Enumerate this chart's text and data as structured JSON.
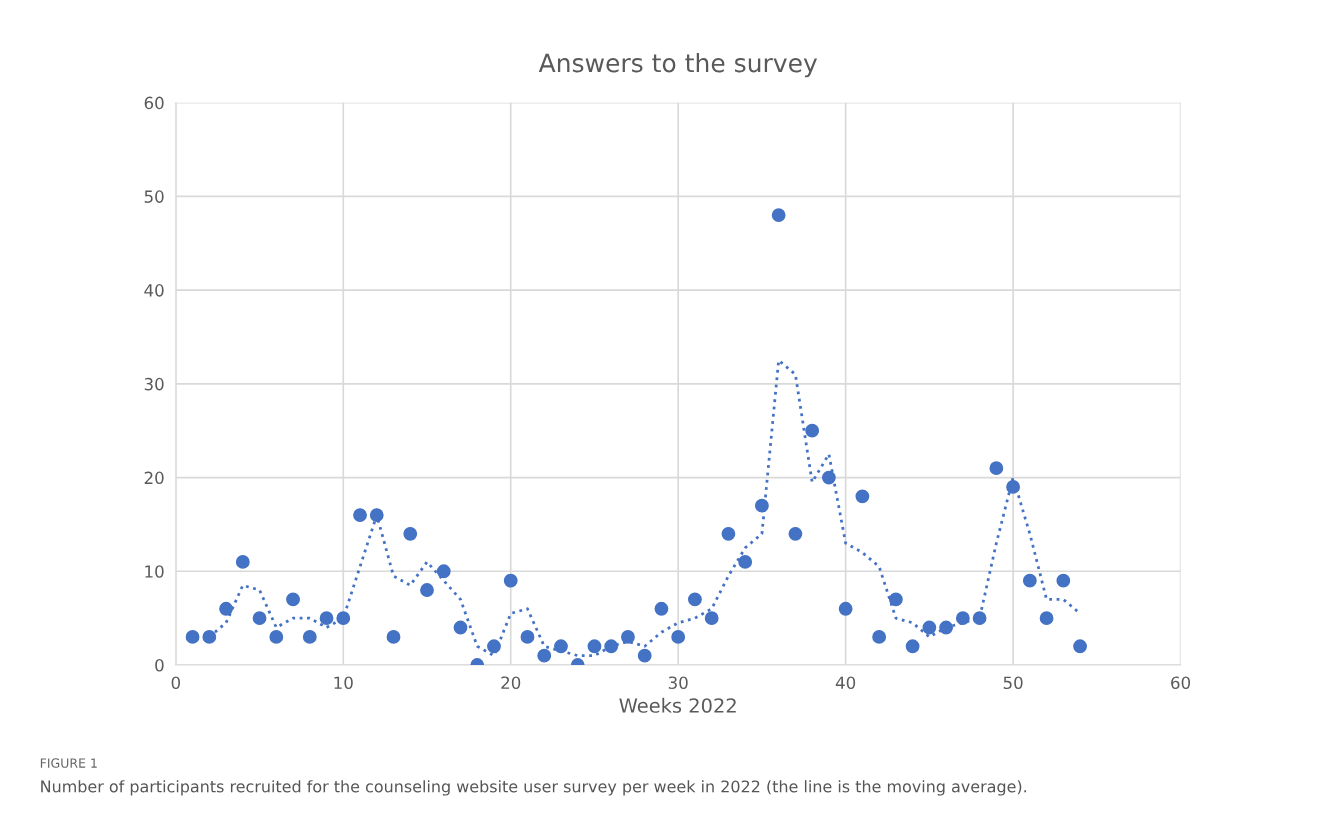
{
  "chart_data": {
    "type": "scatter",
    "title": "Answers to the survey",
    "xlabel": "Weeks 2022",
    "annotations": [
      "FIGURE 1",
      "Number of participants recruited for the counseling website user survey per week in 2022 (the line is the moving average)."
    ],
    "series": [
      {
        "color": "#4472c4",
        "marker": "circle",
        "x": [
          1,
          2,
          3,
          4,
          5,
          6,
          7,
          8,
          9,
          10,
          11,
          12,
          13,
          14,
          15,
          16,
          17,
          18,
          19,
          20,
          21,
          22,
          23,
          24,
          25,
          26,
          27,
          28,
          29,
          30,
          31,
          32,
          33,
          34,
          35,
          36,
          37,
          38,
          39,
          40,
          41,
          42,
          43,
          44,
          45,
          46,
          47,
          48,
          49,
          50,
          51,
          52,
          53,
          54
        ],
        "values": [
          3,
          3,
          6,
          11,
          5,
          3,
          7,
          3,
          5,
          5,
          16,
          16,
          3,
          14,
          8,
          10,
          4,
          0,
          2,
          9,
          3,
          1,
          2,
          0,
          2,
          2,
          3,
          1,
          6,
          3,
          7,
          5,
          14,
          11,
          17,
          48,
          14,
          25,
          20,
          6,
          18,
          3,
          7,
          2,
          4,
          4,
          5,
          5,
          21,
          19,
          9,
          5,
          9,
          2
        ]
      },
      {
        "type": "line",
        "color": "#4472c4",
        "line_style": "dotted",
        "x": [
          2,
          3,
          4,
          5,
          6,
          7,
          8,
          9,
          10,
          11,
          12,
          13,
          14,
          15,
          16,
          17,
          18,
          19,
          20,
          21,
          22,
          23,
          24,
          25,
          26,
          27,
          28,
          29,
          30,
          31,
          32,
          33,
          34,
          35,
          36,
          37,
          38,
          39,
          40,
          41,
          42,
          43,
          44,
          45,
          46,
          47,
          48,
          49,
          50,
          51,
          52,
          53,
          54
        ],
        "values": [
          3,
          4.5,
          8.5,
          8,
          4,
          5,
          5,
          4,
          5,
          10.5,
          16,
          9.5,
          8.5,
          11,
          9,
          7,
          2,
          1,
          5.5,
          6,
          2,
          1.5,
          1,
          1,
          2,
          2.5,
          2,
          3.5,
          4.5,
          5,
          6,
          9.5,
          12.5,
          14,
          32.5,
          31,
          19.5,
          22.5,
          13,
          12,
          10.5,
          5,
          4.5,
          3,
          4,
          4.5,
          5,
          13,
          20,
          14,
          7,
          7,
          5.5
        ]
      }
    ],
    "xlim": [
      0,
      60
    ],
    "xticks": [
      0,
      10,
      20,
      30,
      40,
      50,
      60
    ],
    "ylim": [
      0,
      60
    ],
    "yticks": [
      0,
      10,
      20,
      30,
      40,
      50,
      60
    ],
    "grid": true
  }
}
